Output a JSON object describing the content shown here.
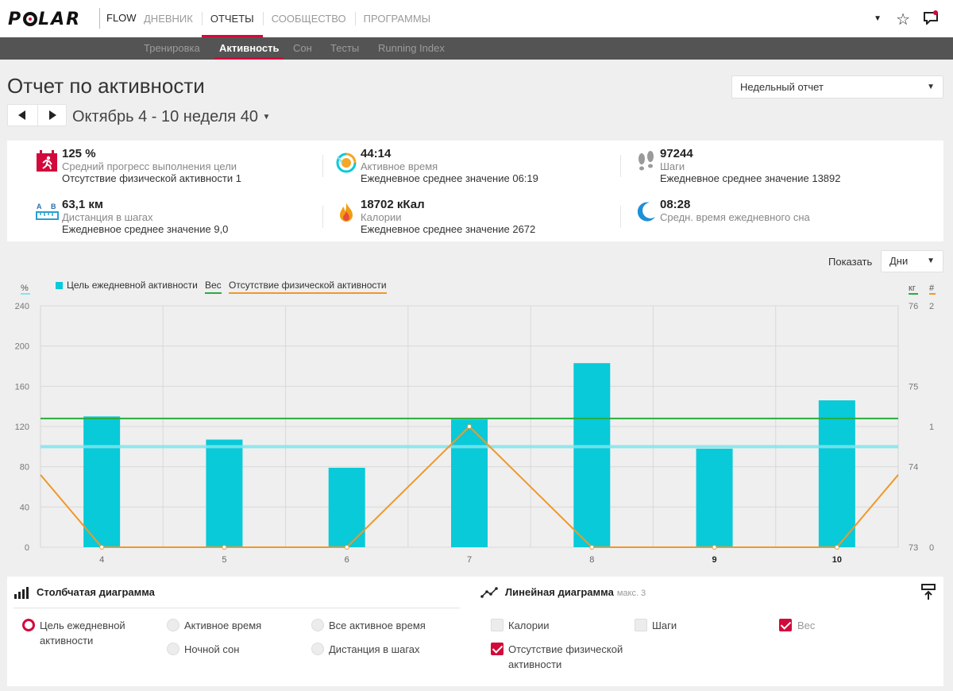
{
  "header": {
    "brand": "POLAR",
    "product": "FLOW",
    "nav": [
      "ДНЕВНИК",
      "ОТЧЕТЫ",
      "СООБЩЕСТВО",
      "ПРОГРАММЫ"
    ],
    "active_nav": "ОТЧЕТЫ"
  },
  "subnav": {
    "items": [
      "Тренировка",
      "Активность",
      "Сон",
      "Тесты",
      "Running Index"
    ],
    "active": "Активность"
  },
  "page": {
    "title": "Отчет по активности",
    "report_type": "Недельный отчет",
    "week_label": "Октябрь 4 - 10 неделя 40"
  },
  "stats": [
    {
      "icon": "activity-goal-icon",
      "value": "125 %",
      "label": "Средний прогресс выполнения цели",
      "sub": "Отсутствие физической активности 1"
    },
    {
      "icon": "active-time-icon",
      "value": "44:14",
      "label": "Активное время",
      "sub": "Ежедневное среднее значение 06:19"
    },
    {
      "icon": "steps-icon",
      "value": "97244",
      "label": "Шаги",
      "sub": "Ежедневное среднее значение 13892"
    },
    {
      "icon": "step-distance-icon",
      "value": "63,1 км",
      "label": "Дистанция в шагах",
      "sub": "Ежедневное среднее значение 9,0"
    },
    {
      "icon": "calories-icon",
      "value": "18702 кКал",
      "label": "Калории",
      "sub": "Ежедневное среднее значение 2672"
    },
    {
      "icon": "sleep-icon",
      "value": "08:28",
      "label": "Средн. время ежедневного сна",
      "sub": ""
    }
  ],
  "show": {
    "label": "Показать",
    "value": "Дни"
  },
  "colors": {
    "bar": "#08cad9",
    "weight": "#27ae3c",
    "inactivity": "#f0982a",
    "goal": "#7fe6ee",
    "accent": "#d10a3b"
  },
  "chart_data": {
    "type": "bar",
    "categories": [
      "4",
      "5",
      "6",
      "7",
      "8",
      "9",
      "10"
    ],
    "bold_categories": [
      "9",
      "10"
    ],
    "left_axis": {
      "unit": "%",
      "ticks": [
        0,
        40,
        80,
        120,
        160,
        200,
        240
      ],
      "range": [
        0,
        240
      ]
    },
    "right_axis_kg": {
      "unit": "кг",
      "ticks": [
        73,
        74,
        75,
        76
      ],
      "range": [
        73,
        76
      ]
    },
    "right_axis_count": {
      "unit": "#",
      "ticks": [
        0,
        1,
        2
      ],
      "range": [
        0,
        2
      ]
    },
    "legend": [
      "Цель ежедневной активности",
      "Вес",
      "Отсутствие физической активности"
    ],
    "series": [
      {
        "name": "Цель ежедневной активности",
        "axis": "left",
        "type": "bar",
        "values": [
          130,
          107,
          79,
          127,
          183,
          98,
          146
        ]
      },
      {
        "name": "Вес",
        "axis": "right_kg",
        "type": "line",
        "values": [
          74.6,
          74.6,
          74.6,
          74.6,
          74.6,
          74.6,
          74.6
        ]
      },
      {
        "name": "Отсутствие физической активности",
        "axis": "right_count",
        "type": "line",
        "values": [
          0,
          0,
          0,
          1,
          0,
          0,
          0
        ],
        "edge_start": 0.6,
        "edge_end": 0.6
      }
    ],
    "goal_line": 100
  },
  "bar_options": {
    "title": "Столбчатая диаграмма",
    "items": [
      {
        "label": "Цель ежедневной активности",
        "checked": true
      },
      {
        "label": "Активное время",
        "checked": false
      },
      {
        "label": "Все активное время",
        "checked": false
      },
      {
        "label": "Ночной сон",
        "checked": false
      },
      {
        "label": "Дистанция в шагах",
        "checked": false
      }
    ]
  },
  "line_options": {
    "title": "Линейная диаграмма",
    "hint": "макс. 3",
    "items": [
      {
        "label": "Калории",
        "checked": false
      },
      {
        "label": "Шаги",
        "checked": false
      },
      {
        "label": "Вес",
        "checked": true
      },
      {
        "label": "Отсутствие физической активности",
        "checked": true
      }
    ]
  }
}
